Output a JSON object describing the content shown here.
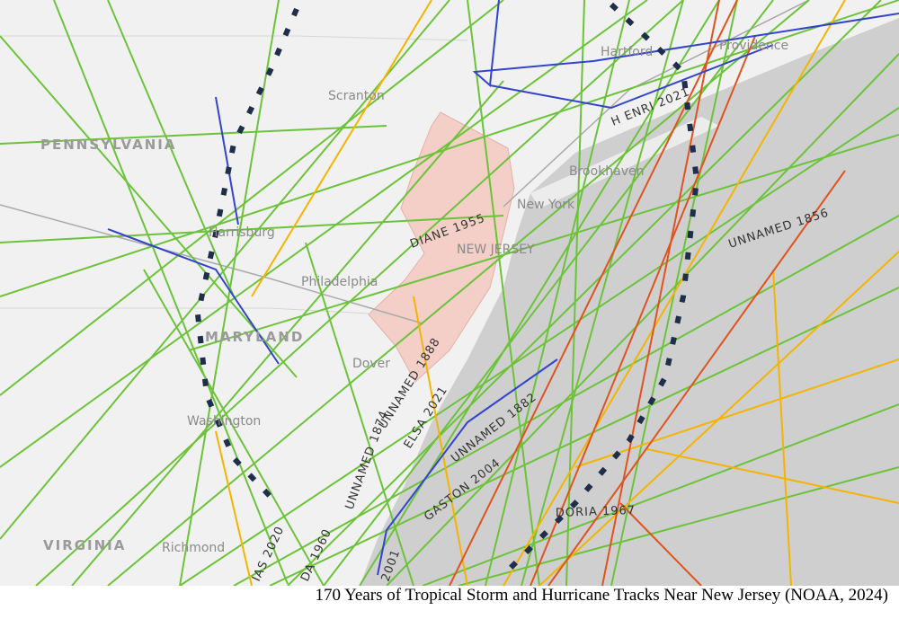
{
  "map": {
    "places": [
      "PENNSYLVANIA",
      "Scranton",
      "Harrisburg",
      "Philadelphia",
      "NEW JERSEY",
      "MARYLAND",
      "Dover",
      "Washington",
      "VIRGINIA",
      "Richmond",
      "Hartford",
      "Providence",
      "Brookhaven",
      "New York"
    ],
    "storms": [
      "DIANE 1955",
      "UNNAMED 1856",
      "H ENRI 2021",
      "UNNAMED 1888",
      "ELSA 2021",
      "UNNAMED 1882",
      "UNNAMED 1874",
      "GASTON 2004",
      "DORIA 1967",
      "DA 1960",
      "IAS 2020",
      "2001"
    ]
  },
  "caption": "170 Years of Tropical Storm and Hurricane Tracks Near New Jersey (NOAA, 2024)"
}
